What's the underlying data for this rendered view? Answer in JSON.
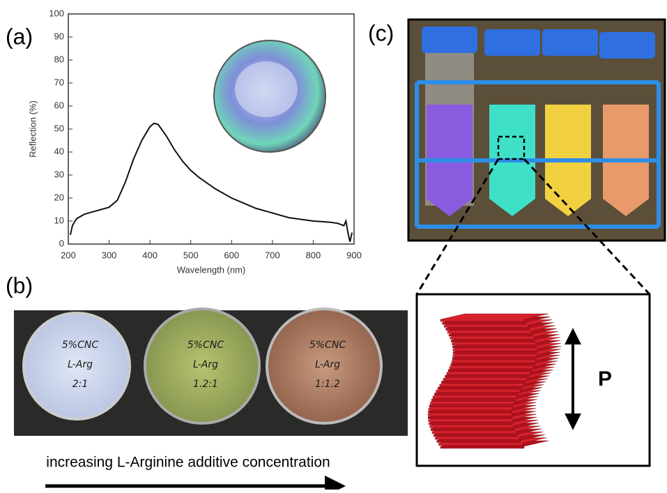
{
  "panel_labels": [
    "(a)",
    "(b)",
    "(c)"
  ],
  "chart_data": {
    "type": "line",
    "x_label": "Wavelength (nm)",
    "y_label": "Reflection (%)",
    "x": [
      205,
      210,
      220,
      240,
      260,
      280,
      300,
      320,
      340,
      360,
      380,
      400,
      410,
      420,
      440,
      460,
      480,
      500,
      520,
      540,
      560,
      580,
      600,
      620,
      640,
      660,
      680,
      700,
      720,
      740,
      760,
      780,
      800,
      820,
      840,
      860,
      875,
      880,
      885,
      890,
      895
    ],
    "values": [
      4,
      8,
      11,
      13,
      14,
      15,
      16,
      19,
      27,
      37,
      45,
      51,
      52.5,
      52,
      47,
      41,
      36,
      32,
      29,
      26.5,
      24,
      22,
      20,
      18.5,
      17,
      15.5,
      14.5,
      13.5,
      12.5,
      11.5,
      11,
      10.5,
      10,
      9.8,
      9.5,
      9,
      8,
      10,
      5,
      1,
      5
    ],
    "color": "#111111",
    "xlim": [
      200,
      900
    ],
    "xticks": [
      200,
      300,
      400,
      500,
      600,
      700,
      800,
      900
    ],
    "ylim": [
      0,
      100
    ],
    "yticks": [
      0,
      10,
      20,
      30,
      40,
      50,
      60,
      70,
      80,
      90,
      100
    ]
  },
  "dishes": [
    [
      "5%CNC",
      "L-Arg",
      "2:1"
    ],
    [
      "5%CNC",
      "L-Arg",
      "1.2:1"
    ],
    [
      "5%CNC",
      "L-Arg",
      "1:1.2"
    ]
  ],
  "caption": "increasing L-Arginine additive concentration",
  "pitch_label": "P"
}
